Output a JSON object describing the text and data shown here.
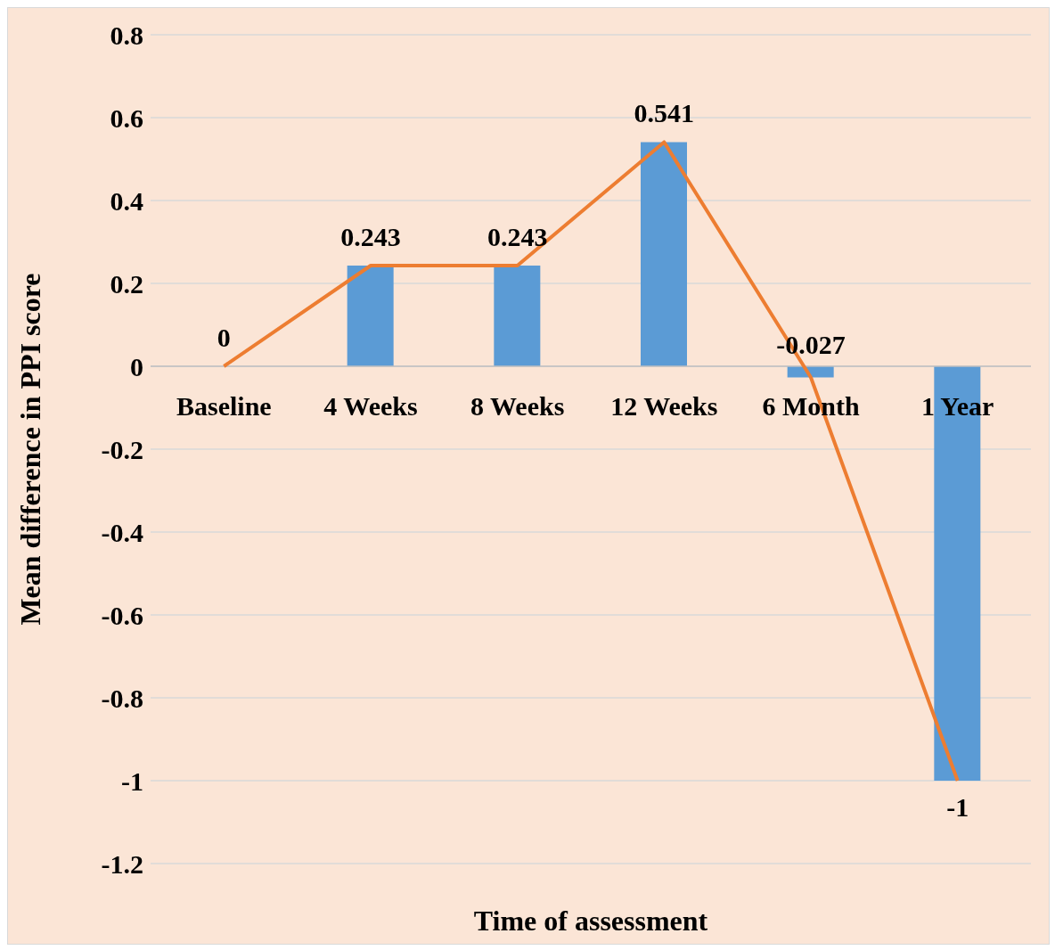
{
  "chart_data": {
    "type": "bar",
    "xlabel": "Time of assessment",
    "ylabel": "Mean difference in PPI score",
    "categories": [
      "Baseline",
      "4 Weeks",
      "8 Weeks",
      "12 Weeks",
      "6 Month",
      "1 Year"
    ],
    "series": [
      {
        "color": "#5b9bd5",
        "values": [
          0,
          0.243,
          0.243,
          0.541,
          -0.027,
          -1
        ],
        "value_labels": [
          "0",
          "0.243",
          "0.243",
          "0.541",
          "-0.027",
          "-1"
        ]
      },
      {
        "type": "line",
        "color": "#ed7d31",
        "values": [
          0,
          0.243,
          0.243,
          0.541,
          -0.027,
          -1
        ]
      }
    ],
    "ylim": [
      -1.2,
      0.8
    ],
    "yticks": [
      -1.2,
      -1,
      -0.8,
      -0.6,
      -0.4,
      -0.2,
      0,
      0.2,
      0.4,
      0.6,
      0.8
    ],
    "grid": "y",
    "marker": "none"
  }
}
